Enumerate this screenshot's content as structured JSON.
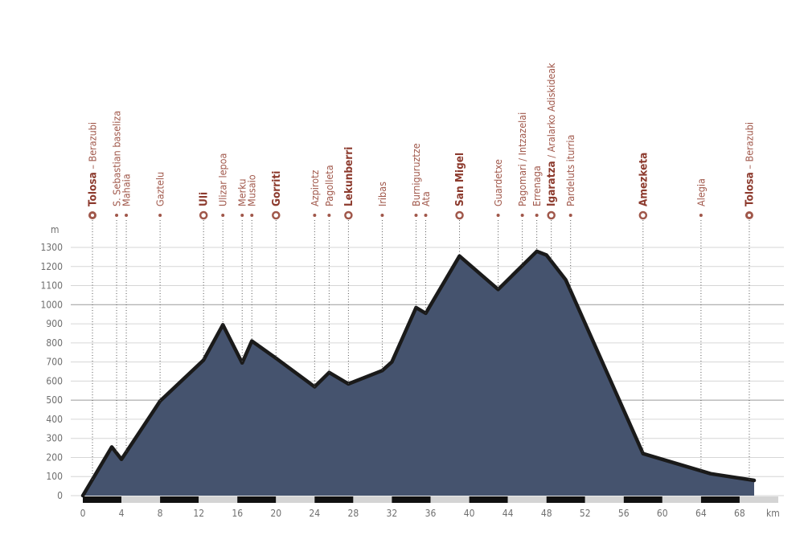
{
  "chart_data": {
    "type": "area",
    "ylabel": "m",
    "xlabel": "km",
    "ylim": [
      0,
      1300
    ],
    "xlim": [
      0,
      72
    ],
    "y_ticks": [
      0,
      100,
      200,
      300,
      400,
      500,
      600,
      700,
      800,
      900,
      1000,
      1100,
      1200,
      1300
    ],
    "x_ticks": [
      0,
      4,
      8,
      12,
      16,
      20,
      24,
      28,
      32,
      36,
      40,
      44,
      48,
      52,
      56,
      60,
      64,
      68
    ],
    "grid": true,
    "fill_color": "#45536e",
    "line_color": "#1a1a1a",
    "accent_color": "#a0574a",
    "profile": [
      {
        "x": 0,
        "y": 0
      },
      {
        "x": 3,
        "y": 255
      },
      {
        "x": 4,
        "y": 190
      },
      {
        "x": 8,
        "y": 495
      },
      {
        "x": 12.5,
        "y": 710
      },
      {
        "x": 14.5,
        "y": 895
      },
      {
        "x": 16.5,
        "y": 695
      },
      {
        "x": 17.5,
        "y": 810
      },
      {
        "x": 20,
        "y": 720
      },
      {
        "x": 24,
        "y": 570
      },
      {
        "x": 25.5,
        "y": 645
      },
      {
        "x": 27.5,
        "y": 585
      },
      {
        "x": 31,
        "y": 655
      },
      {
        "x": 32,
        "y": 700
      },
      {
        "x": 34.5,
        "y": 985
      },
      {
        "x": 35.5,
        "y": 955
      },
      {
        "x": 39,
        "y": 1255
      },
      {
        "x": 43,
        "y": 1080
      },
      {
        "x": 47,
        "y": 1280
      },
      {
        "x": 48,
        "y": 1260
      },
      {
        "x": 50,
        "y": 1130
      },
      {
        "x": 58,
        "y": 220
      },
      {
        "x": 65,
        "y": 115
      },
      {
        "x": 69.5,
        "y": 80
      }
    ],
    "places": [
      {
        "km": 1,
        "label": "Tolosa",
        "suffix": " – Berazubi",
        "style": "start"
      },
      {
        "km": 3.5,
        "label": "S. Sebastian baseliza",
        "style": "minor"
      },
      {
        "km": 4.5,
        "label": "Mahaia",
        "style": "minor"
      },
      {
        "km": 8,
        "label": "Gaztelu",
        "style": "minor"
      },
      {
        "km": 12.5,
        "label": "Uli",
        "style": "major"
      },
      {
        "km": 14.5,
        "label": "Ulizar lepoa",
        "style": "minor"
      },
      {
        "km": 16.5,
        "label": "Merku",
        "style": "minor"
      },
      {
        "km": 17.5,
        "label": "Musaio",
        "style": "minor"
      },
      {
        "km": 20,
        "label": "Gorriti",
        "style": "major"
      },
      {
        "km": 24,
        "label": "Azpirotz",
        "style": "minor"
      },
      {
        "km": 25.5,
        "label": "Pagolleta",
        "style": "minor"
      },
      {
        "km": 27.5,
        "label": "Lekunberri",
        "style": "major"
      },
      {
        "km": 31,
        "label": "Iribas",
        "style": "minor"
      },
      {
        "km": 34.5,
        "label": "Burniguruztze",
        "style": "minor"
      },
      {
        "km": 35.5,
        "label": "Ata",
        "style": "minor"
      },
      {
        "km": 39,
        "label": "San Migel",
        "style": "major"
      },
      {
        "km": 43,
        "label": "Guardetxe",
        "style": "minor"
      },
      {
        "km": 45.5,
        "label": "Pagomari / Intzazelai",
        "style": "minor"
      },
      {
        "km": 47,
        "label": "Errenaga",
        "style": "minor"
      },
      {
        "km": 48.5,
        "label": "Igaratza",
        "suffix": " / Aralarko Adiskideak",
        "style": "major"
      },
      {
        "km": 50.5,
        "label": "Pardeluts iturria",
        "style": "minor"
      },
      {
        "km": 58,
        "label": "Amezketa",
        "style": "major"
      },
      {
        "km": 64,
        "label": "Alegia",
        "style": "minor"
      },
      {
        "km": 69,
        "label": "Tolosa",
        "suffix": " – Berazubi",
        "style": "start"
      }
    ]
  }
}
